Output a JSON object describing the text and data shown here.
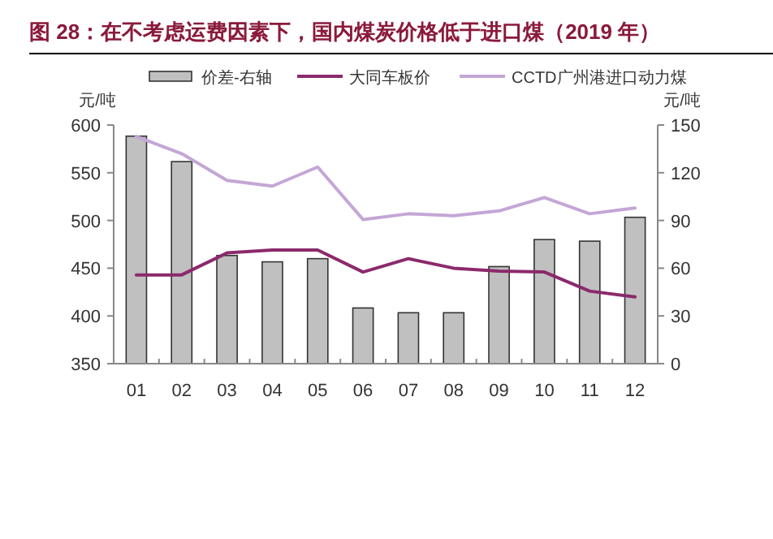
{
  "chart_data": {
    "type": "line",
    "title": "图 28：在不考虑运费因素下，国内煤炭价格低于进口煤（2019 年）",
    "ylabel": "元/吨",
    "y2label": "元/吨",
    "categories": [
      "01",
      "02",
      "03",
      "04",
      "05",
      "06",
      "07",
      "08",
      "09",
      "10",
      "11",
      "12"
    ],
    "series": [
      {
        "name": "价差-右轴",
        "type": "bar",
        "axis": "y2",
        "color": "#c0c0c0",
        "values": [
          143,
          127,
          68,
          64,
          66,
          35,
          32,
          32,
          61,
          78,
          77,
          92
        ]
      },
      {
        "name": "大同车板价",
        "color": "#8b2a6b",
        "values": [
          443,
          443,
          466,
          469,
          469,
          446,
          460,
          450,
          447,
          446,
          426,
          420
        ]
      },
      {
        "name": "CCTD广州港进口动力煤",
        "color": "#c4a6d6",
        "values": [
          588,
          570,
          542,
          536,
          556,
          501,
          507,
          505,
          510,
          524,
          507,
          513
        ]
      }
    ],
    "ylim": [
      350,
      600
    ],
    "yticks": [
      350,
      400,
      450,
      500,
      550,
      600
    ],
    "y2lim": [
      0,
      150
    ],
    "y2ticks": [
      0,
      30,
      60,
      90,
      120,
      150
    ],
    "legend": "top",
    "grid": false
  }
}
